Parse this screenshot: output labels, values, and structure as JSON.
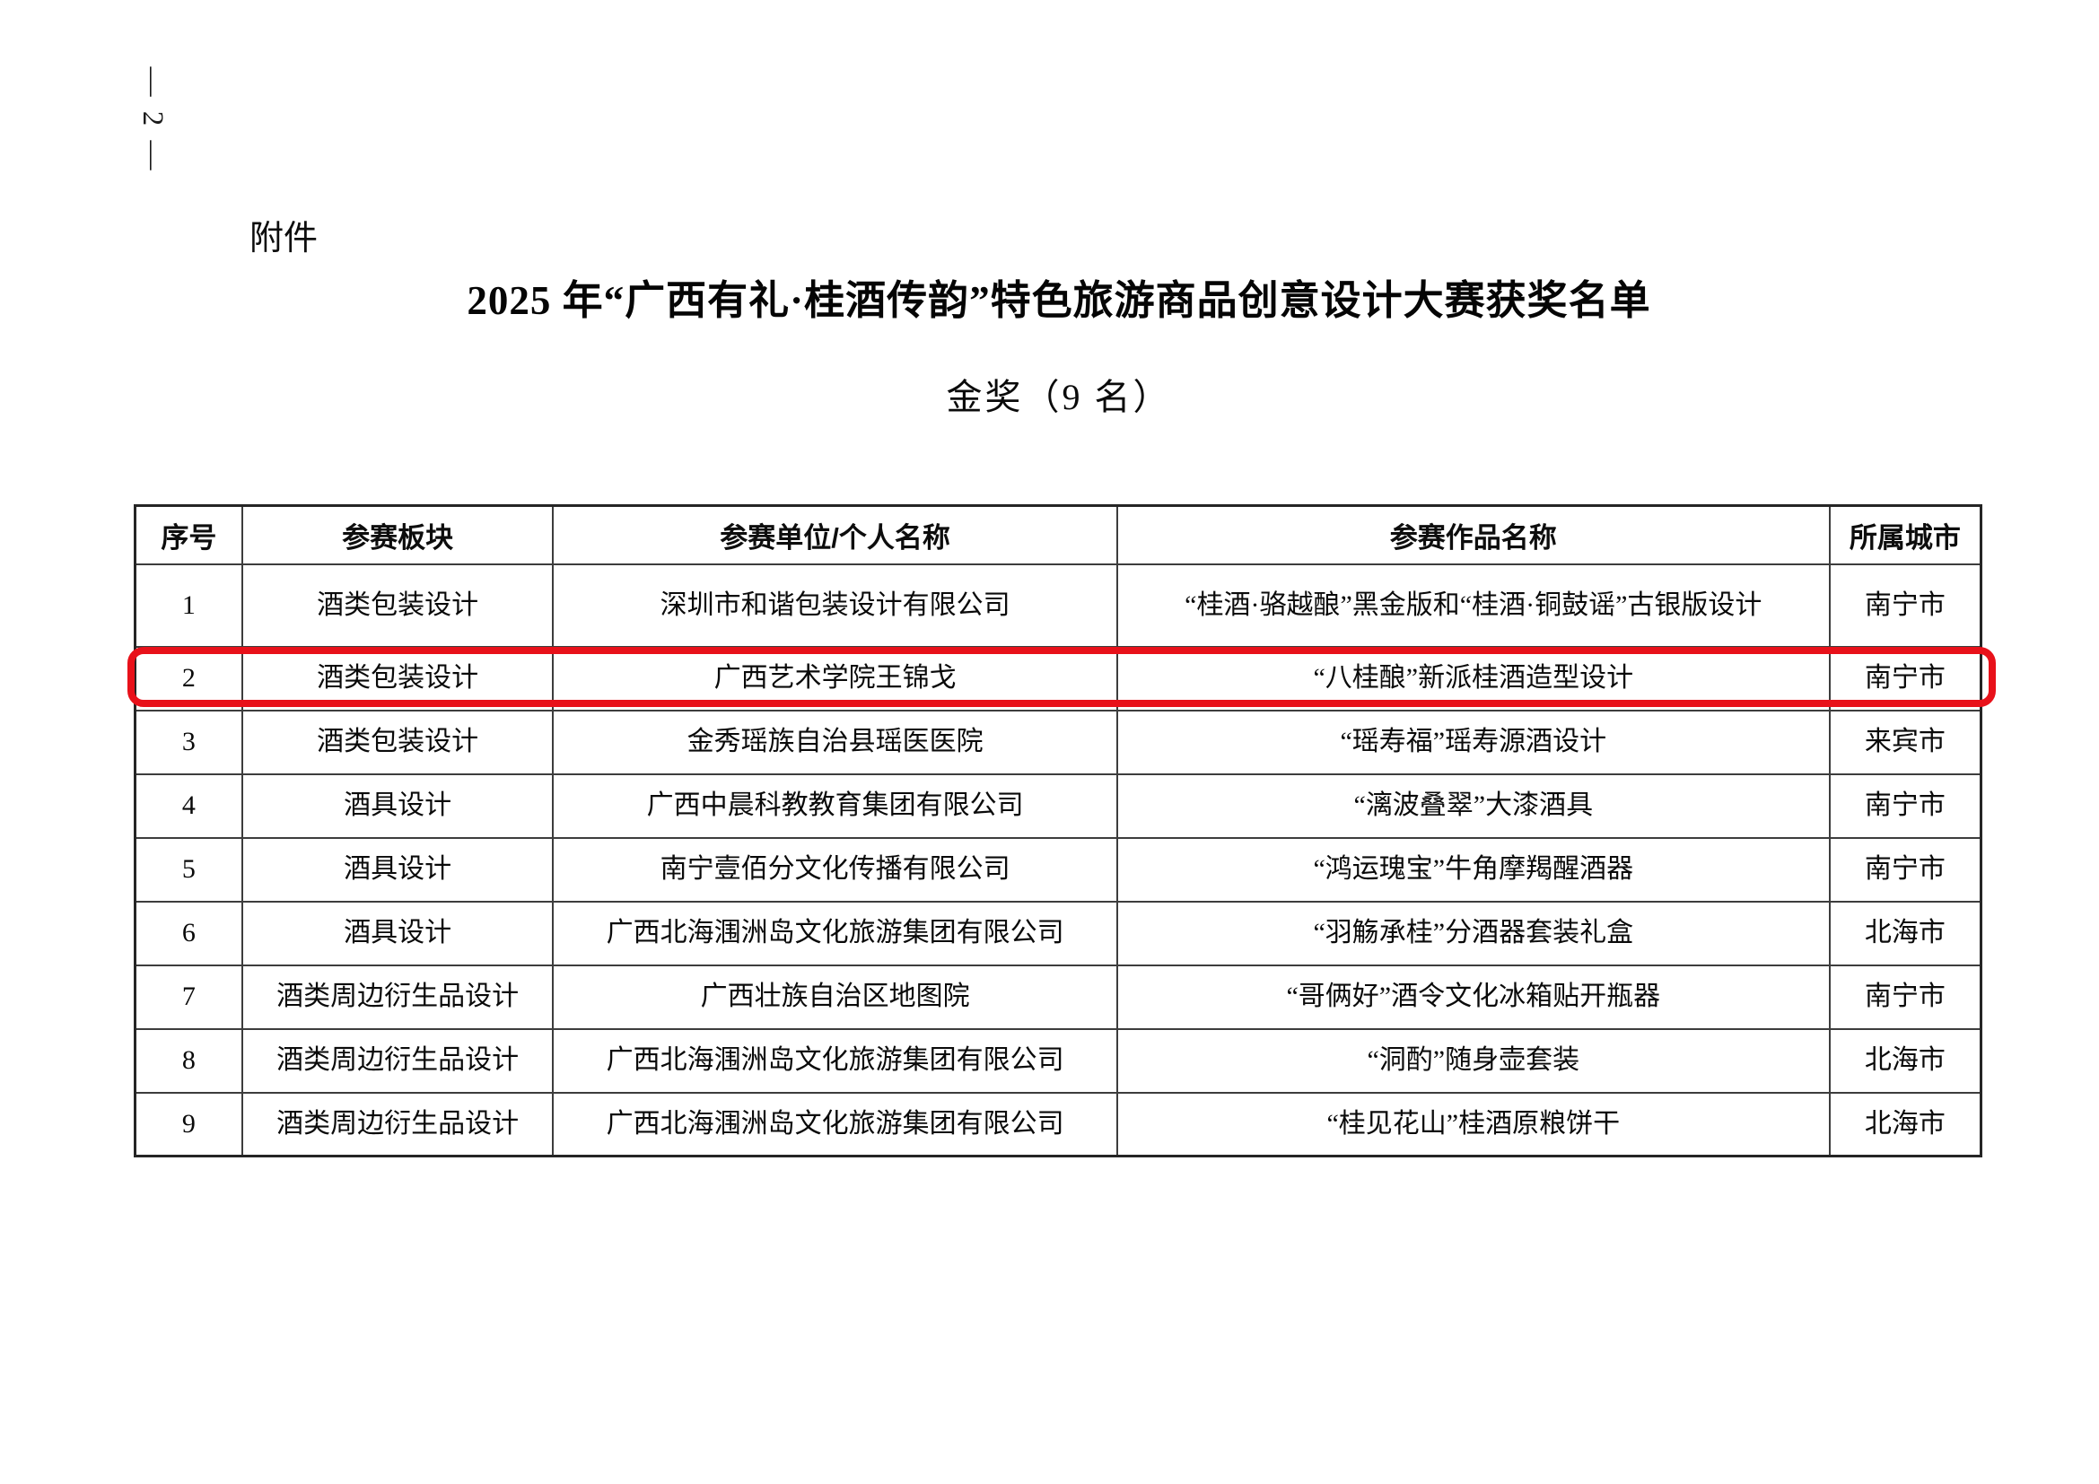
{
  "page": {
    "page_number": "— 2 —",
    "attachment_label": "附件",
    "title": "2025 年“广西有礼·桂酒传韵”特色旅游商品创意设计大赛获奖名单",
    "subtitle": "金奖（9 名）"
  },
  "table": {
    "columns": [
      "序号",
      "参赛板块",
      "参赛单位/个人名称",
      "参赛作品名称",
      "所属城市"
    ],
    "rows": [
      [
        "1",
        "酒类包装设计",
        "深圳市和谐包装设计有限公司",
        "“桂酒·骆越酿”黑金版和“桂酒·铜鼓谣”古银版设计",
        "南宁市"
      ],
      [
        "2",
        "酒类包装设计",
        "广西艺术学院王锦戈",
        "“八桂酿”新派桂酒造型设计",
        "南宁市"
      ],
      [
        "3",
        "酒类包装设计",
        "金秀瑶族自治县瑶医医院",
        "“瑶寿福”瑶寿源酒设计",
        "来宾市"
      ],
      [
        "4",
        "酒具设计",
        "广西中晨科教教育集团有限公司",
        "“漓波叠翠”大漆酒具",
        "南宁市"
      ],
      [
        "5",
        "酒具设计",
        "南宁壹佰分文化传播有限公司",
        "“鸿运瑰宝”牛角摩羯醒酒器",
        "南宁市"
      ],
      [
        "6",
        "酒具设计",
        "广西北海涠洲岛文化旅游集团有限公司",
        "“羽觞承桂”分酒器套装礼盒",
        "北海市"
      ],
      [
        "7",
        "酒类周边衍生品设计",
        "广西壮族自治区地图院",
        "“哥俩好”酒令文化冰箱贴开瓶器",
        "南宁市"
      ],
      [
        "8",
        "酒类周边衍生品设计",
        "广西北海涠洲岛文化旅游集团有限公司",
        "“洞酌”随身壶套装",
        "北海市"
      ],
      [
        "9",
        "酒类周边衍生品设计",
        "广西北海涠洲岛文化旅游集团有限公司",
        "“桂见花山”桂酒原粮饼干",
        "北海市"
      ]
    ],
    "highlighted_row_index": 1,
    "highlight_color": "#e8111a"
  }
}
